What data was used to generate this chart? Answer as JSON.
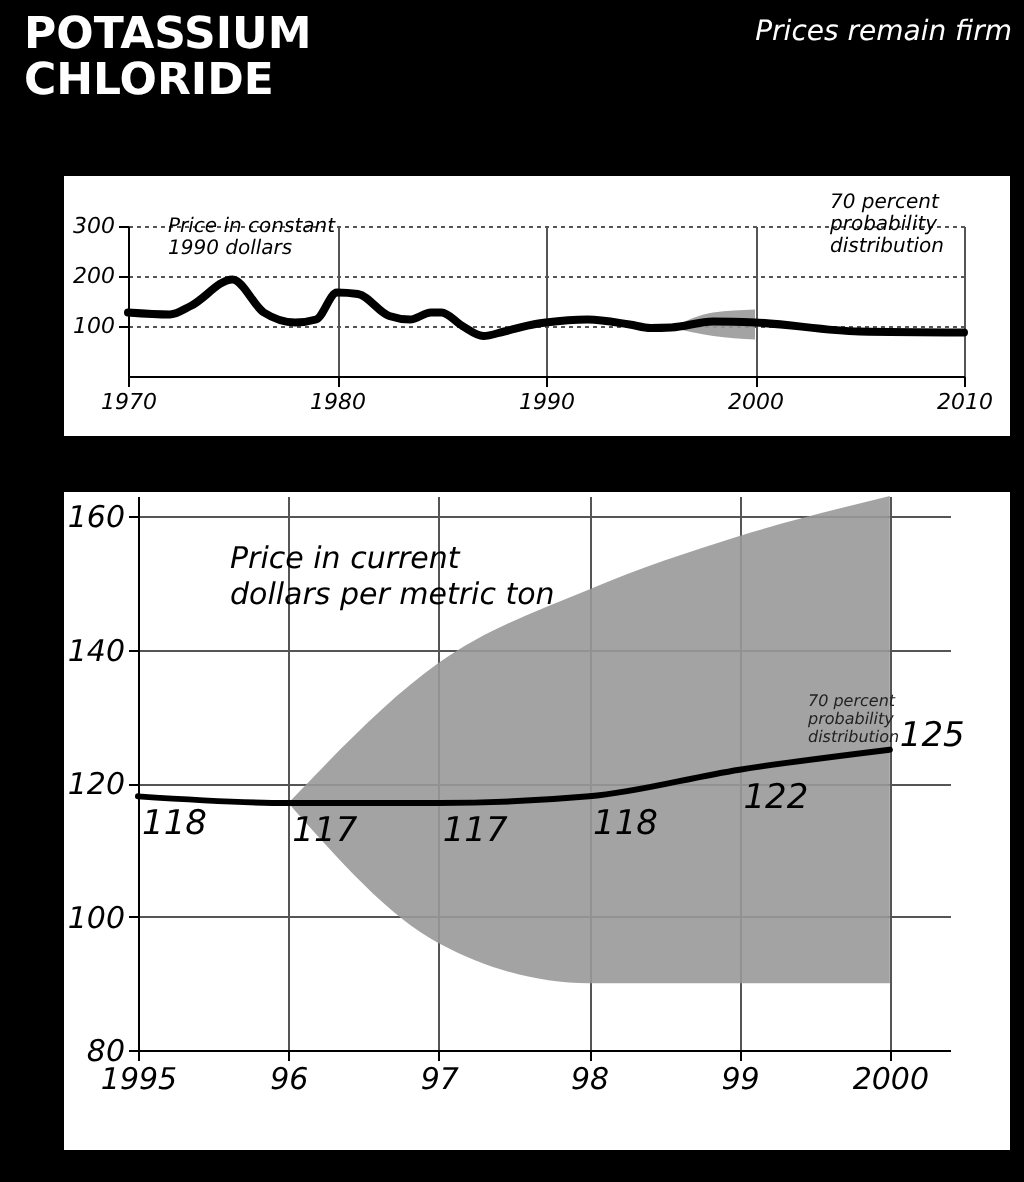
{
  "chart_data": [
    {
      "type": "line",
      "title": "POTASSIUM CHLORIDE",
      "subtitle": "Prices remain firm",
      "x": [
        1970,
        1972,
        1973,
        1975,
        1976.5,
        1978,
        1979,
        1980,
        1981,
        1982.5,
        1983.5,
        1984.5,
        1985,
        1986,
        1987,
        1988,
        1989.5,
        1990,
        1992,
        1994,
        1995,
        1996,
        1998,
        2000,
        2005,
        2010
      ],
      "series": [
        {
          "color": "#000000",
          "values": [
            127,
            123,
            140,
            193,
            127,
            107,
            113,
            167,
            164,
            120,
            113,
            127,
            127,
            100,
            80,
            89,
            104,
            107,
            113,
            103,
            96,
            97,
            109,
            107,
            89,
            87
          ],
          "lower": [
            null,
            null,
            null,
            null,
            null,
            null,
            null,
            null,
            null,
            null,
            null,
            null,
            null,
            null,
            null,
            null,
            null,
            null,
            null,
            null,
            null,
            97,
            80,
            73,
            null,
            null
          ],
          "upper": [
            null,
            null,
            null,
            null,
            null,
            null,
            null,
            null,
            null,
            null,
            null,
            null,
            null,
            null,
            null,
            null,
            null,
            null,
            null,
            null,
            null,
            97,
            127,
            133,
            null,
            null
          ]
        }
      ],
      "xlim": [
        1970,
        2010
      ],
      "ylim": [
        0,
        300
      ],
      "xticks": [
        1970,
        1980,
        1990,
        2000,
        2010
      ],
      "yticks": [
        100,
        200,
        300
      ],
      "grid": true,
      "annotations": [
        "Price in constant 1990 dollars",
        "70 percent probability distribution"
      ]
    },
    {
      "type": "line",
      "x": [
        1995,
        1996,
        1997,
        1998,
        1999,
        2000
      ],
      "series": [
        {
          "color": "#000000",
          "values": [
            118,
            117,
            117,
            118,
            122,
            125
          ],
          "lower": [
            null,
            117,
            96,
            90,
            90,
            90
          ],
          "upper": [
            null,
            117,
            138,
            149,
            157,
            163
          ]
        }
      ],
      "xlim": [
        1995,
        2000.4
      ],
      "ylim": [
        80,
        163
      ],
      "xticks": [
        1995,
        {
          "value": 1996,
          "label": "96"
        },
        {
          "value": 1997,
          "label": "97"
        },
        {
          "value": 1998,
          "label": "98"
        },
        {
          "value": 1999,
          "label": "99"
        },
        2000
      ],
      "yticks": [
        80,
        100,
        120,
        140,
        160
      ],
      "grid": true,
      "data_labels": true,
      "annotations": [
        "Price in current dollars per metric ton",
        "70 percent probability distribution"
      ]
    }
  ]
}
